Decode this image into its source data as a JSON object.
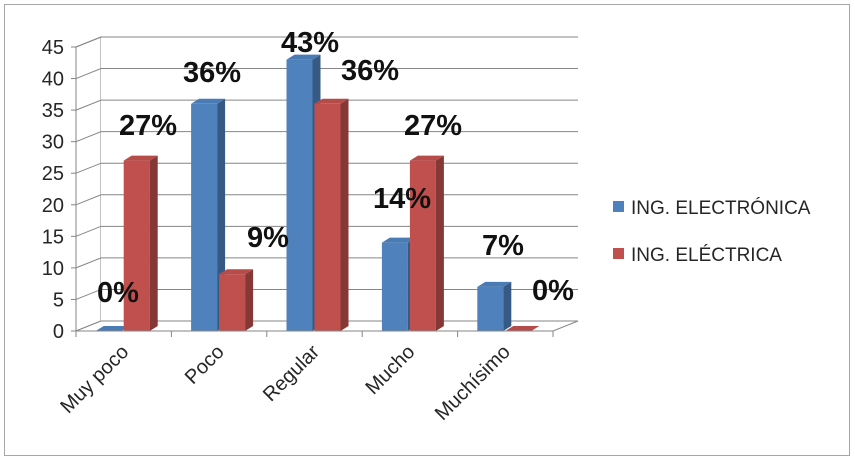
{
  "chart_data": {
    "type": "bar",
    "style": "3d-clustered-column",
    "categories": [
      "Muy poco",
      "Poco",
      "Regular",
      "Mucho",
      "Muchísimo"
    ],
    "series": [
      {
        "name": "ING. ELECTRÓNICA",
        "color": "#4f81bd",
        "values": [
          0,
          36,
          43,
          14,
          7
        ],
        "labels": [
          "0%",
          "36%",
          "43%",
          "14%",
          "7%"
        ]
      },
      {
        "name": "ING. ELÉCTRICA",
        "color": "#c0504d",
        "values": [
          27,
          9,
          36,
          27,
          0
        ],
        "labels": [
          "27%",
          "9%",
          "36%",
          "27%",
          "0%"
        ]
      }
    ],
    "y_ticks": [
      "0",
      "5",
      "10",
      "15",
      "20",
      "25",
      "30",
      "35",
      "40",
      "45"
    ],
    "ylim": [
      0,
      45
    ],
    "grid": true,
    "legend_position": "right"
  }
}
